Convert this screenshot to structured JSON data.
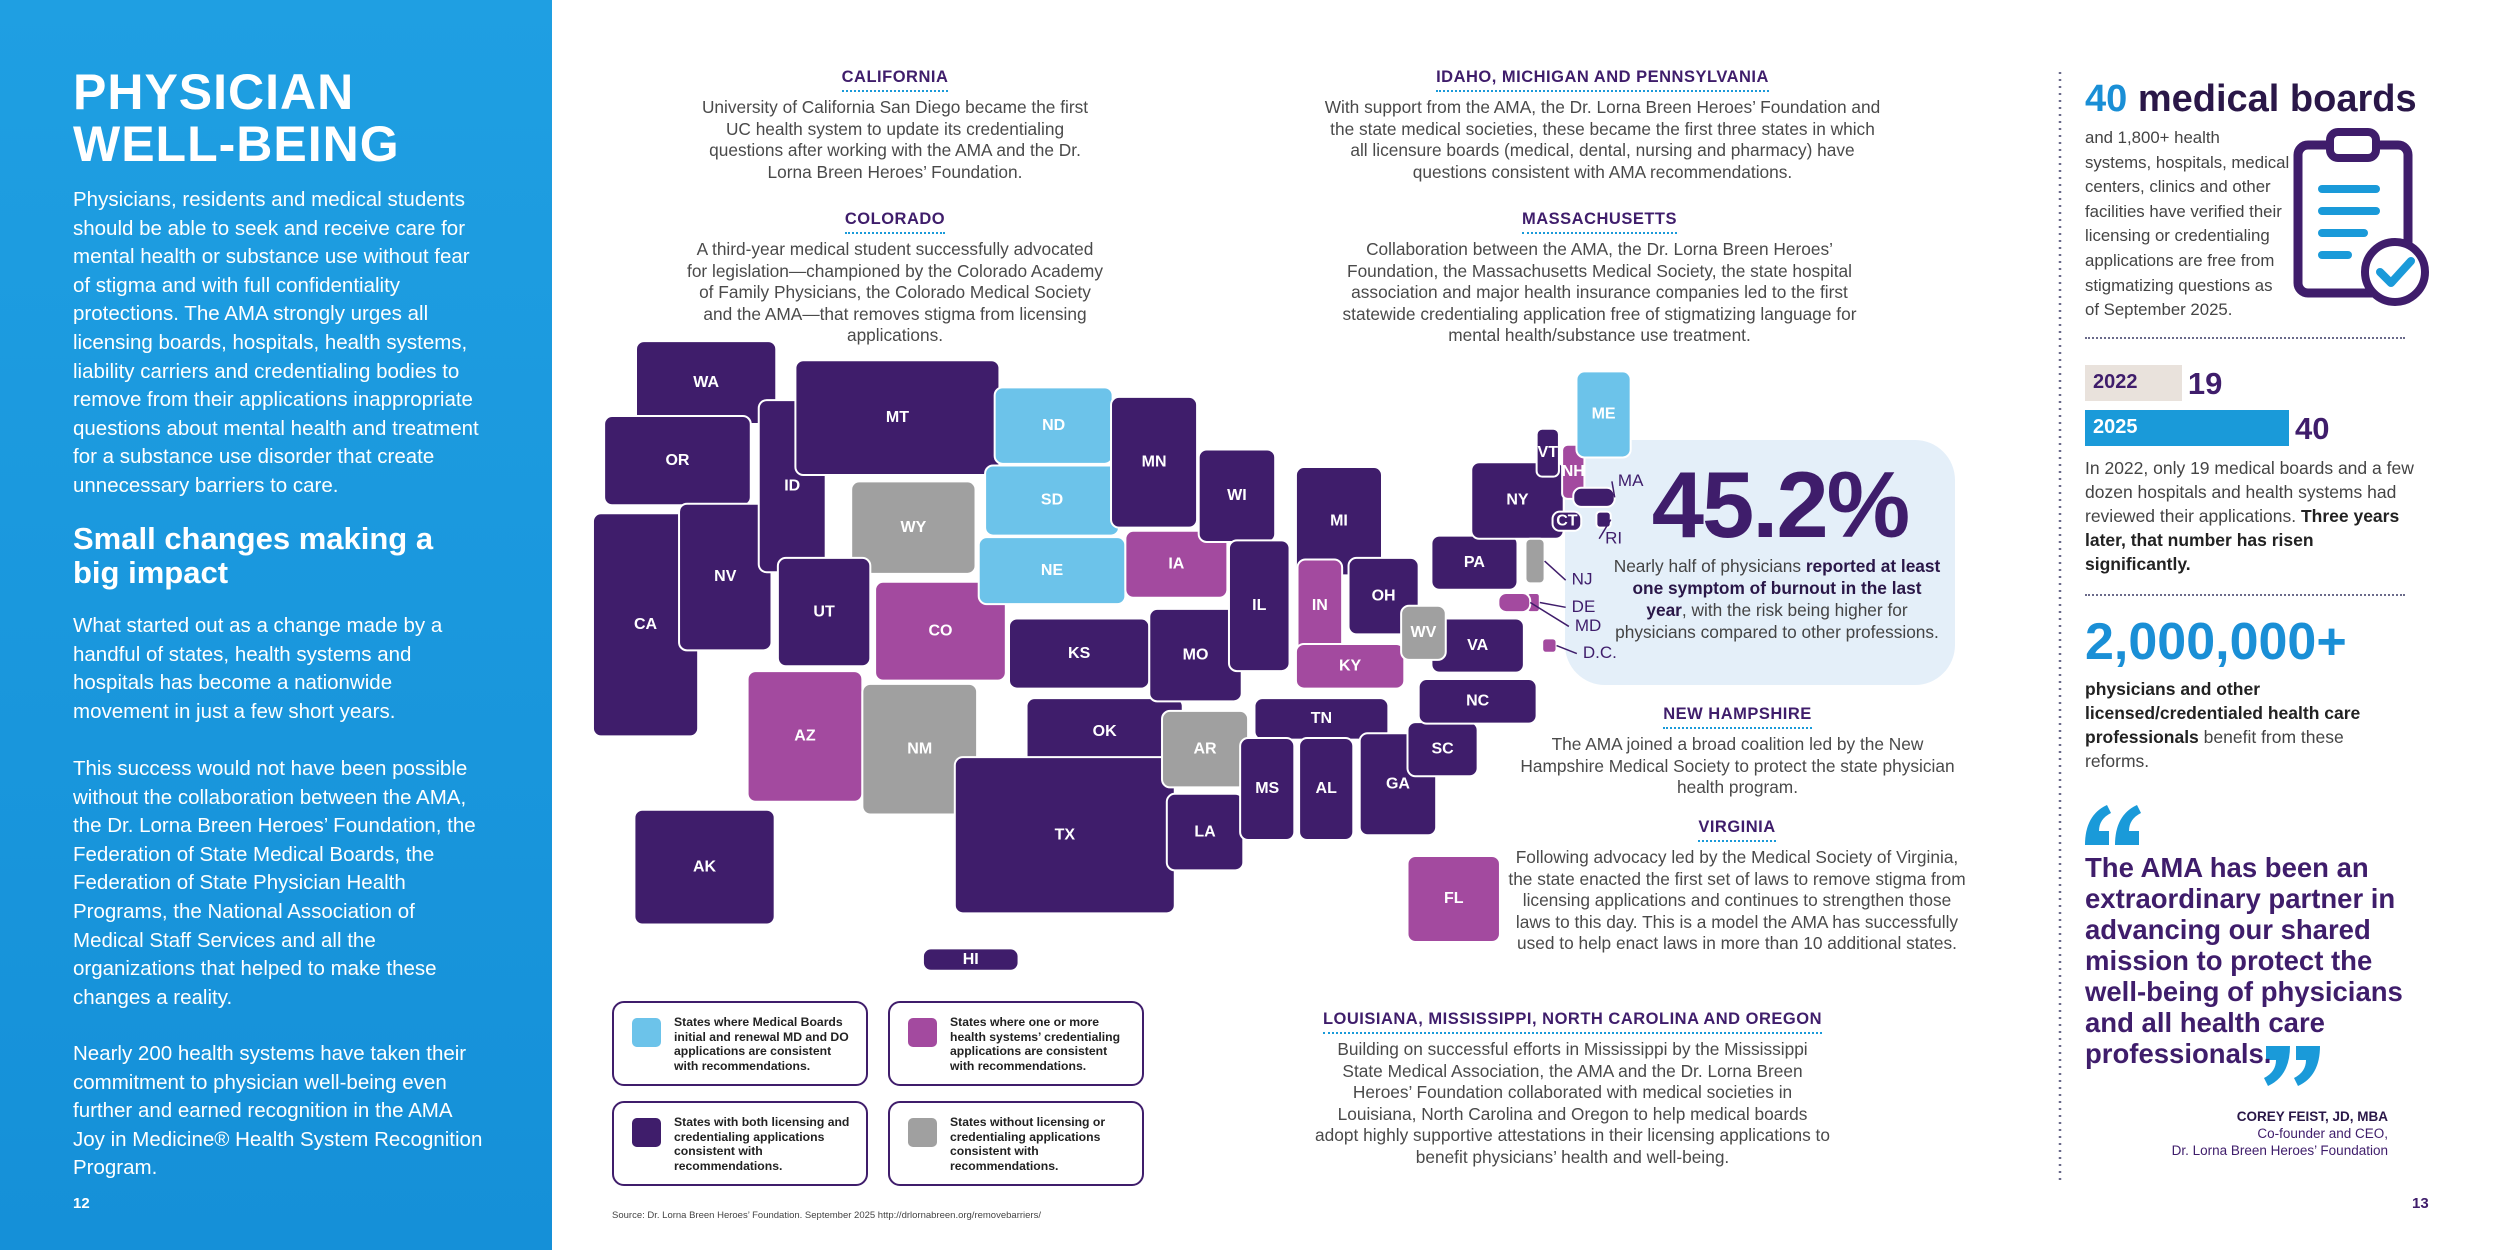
{
  "left_panel": {
    "title_lines": [
      "PHYSICIAN",
      "WELL-BEING"
    ],
    "intro": "Physicians, residents and medical students should be able to seek and receive care for mental health or substance use without fear of stigma and with full confidentiality protections. The AMA strongly urges all licensing boards, hospitals, health systems, liability carriers and credentialing bodies to remove from their applications inappropriate questions about mental health and treatment for a substance use disorder that create unnecessary barriers to care.",
    "heading": "Small changes making a big impact",
    "paragraphs": [
      "What started out as a change made by a handful of states, health systems and hospitals has become a nationwide movement in just a few short years.",
      "This success would not have been possible without the collaboration between the AMA, the Dr. Lorna Breen Heroes’ Foundation, the Federation of State Medical Boards, the Federation of State Physician Health Programs, the National Association of Medical Staff Services and all the organizations that helped to make these changes a reality.",
      "Nearly 200 health systems have taken their commitment to physician well-being even further and earned recognition in the AMA Joy in Medicine® Health System Recognition Program."
    ],
    "page_number": "12"
  },
  "callouts": [
    {
      "heading": "CALIFORNIA",
      "text": "University of California San Diego became the first UC health system to update its credentialing questions after working with the AMA and the Dr. Lorna Breen Heroes’ Foundation."
    },
    {
      "heading": "COLORADO",
      "text": "A third-year medical student successfully advocated for legislation—championed by the Colorado Academy of Family Physicians, the Colorado Medical Society and the AMA—that removes stigma from licensing applications."
    },
    {
      "heading": "IDAHO, MICHIGAN AND PENNSYLVANIA",
      "text": "With support from the AMA, the Dr. Lorna Breen Heroes’ Foundation and the state medical societies, these became the first three states in which all licensure boards (medical, dental, nursing and pharmacy) have questions consistent with AMA recommendations."
    },
    {
      "heading": "MASSACHUSETTS",
      "text": "Collaboration between the AMA, the Dr. Lorna Breen Heroes’ Foundation, the Massachusetts Medical Society, the state hospital association and major health insurance companies led to the first statewide credentialing application free of stigmatizing language for mental health/substance use treatment."
    },
    {
      "heading": "NEW HAMPSHIRE",
      "text": "The AMA joined a broad coalition led by the New Hampshire Medical Society to protect the state physician health program."
    },
    {
      "heading": "VIRGINIA",
      "text": "Following advocacy led by the Medical Society of Virginia, the state enacted the first set of laws to remove stigma from licensing applications and continues to strengthen those laws to this day. This is a model the AMA has successfully used to help enact laws in more than 10 additional states."
    },
    {
      "heading": "LOUISIANA, MISSISSIPPI, NORTH CAROLINA AND OREGON",
      "text": "Building on successful efforts in Mississippi by the Mississippi State Medical Association, the AMA and the Dr. Lorna Breen Heroes’ Foundation collaborated with medical societies in Louisiana, North Carolina and Oregon to help medical boards adopt highly supportive attestations in their licensing applications to benefit physicians’ health and well-being."
    }
  ],
  "map": {
    "states": [
      {
        "code": "WA",
        "color": "#3f1d6b"
      },
      {
        "code": "OR",
        "color": "#3f1d6b"
      },
      {
        "code": "CA",
        "color": "#3f1d6b"
      },
      {
        "code": "NV",
        "color": "#3f1d6b"
      },
      {
        "code": "ID",
        "color": "#3f1d6b"
      },
      {
        "code": "MT",
        "color": "#3f1d6b"
      },
      {
        "code": "WY",
        "color": "#a0a0a0"
      },
      {
        "code": "UT",
        "color": "#3f1d6b"
      },
      {
        "code": "CO",
        "color": "#a34a9f"
      },
      {
        "code": "AZ",
        "color": "#a34a9f"
      },
      {
        "code": "NM",
        "color": "#a0a0a0"
      },
      {
        "code": "ND",
        "color": "#6cc3ea"
      },
      {
        "code": "SD",
        "color": "#6cc3ea"
      },
      {
        "code": "NE",
        "color": "#6cc3ea"
      },
      {
        "code": "KS",
        "color": "#3f1d6b"
      },
      {
        "code": "OK",
        "color": "#3f1d6b"
      },
      {
        "code": "TX",
        "color": "#3f1d6b"
      },
      {
        "code": "MN",
        "color": "#3f1d6b"
      },
      {
        "code": "IA",
        "color": "#a34a9f"
      },
      {
        "code": "MO",
        "color": "#3f1d6b"
      },
      {
        "code": "AR",
        "color": "#a0a0a0"
      },
      {
        "code": "LA",
        "color": "#3f1d6b"
      },
      {
        "code": "WI",
        "color": "#3f1d6b"
      },
      {
        "code": "IL",
        "color": "#3f1d6b"
      },
      {
        "code": "MI",
        "color": "#3f1d6b"
      },
      {
        "code": "IN",
        "color": "#a34a9f"
      },
      {
        "code": "OH",
        "color": "#3f1d6b"
      },
      {
        "code": "KY",
        "color": "#a34a9f"
      },
      {
        "code": "TN",
        "color": "#3f1d6b"
      },
      {
        "code": "MS",
        "color": "#3f1d6b"
      },
      {
        "code": "AL",
        "color": "#3f1d6b"
      },
      {
        "code": "GA",
        "color": "#3f1d6b"
      },
      {
        "code": "FL",
        "color": "#a34a9f"
      },
      {
        "code": "SC",
        "color": "#3f1d6b"
      },
      {
        "code": "NC",
        "color": "#3f1d6b"
      },
      {
        "code": "VA",
        "color": "#3f1d6b"
      },
      {
        "code": "WV",
        "color": "#a0a0a0"
      },
      {
        "code": "PA",
        "color": "#3f1d6b"
      },
      {
        "code": "NY",
        "color": "#3f1d6b"
      },
      {
        "code": "VT",
        "color": "#3f1d6b"
      },
      {
        "code": "NH",
        "color": "#a34a9f"
      },
      {
        "code": "ME",
        "color": "#6cc3ea"
      },
      {
        "code": "MA",
        "color": "#3f1d6b"
      },
      {
        "code": "RI",
        "color": "#3f1d6b"
      },
      {
        "code": "CT",
        "color": "#3f1d6b"
      },
      {
        "code": "NJ",
        "color": "#a0a0a0"
      },
      {
        "code": "DE",
        "color": "#a34a9f"
      },
      {
        "code": "MD",
        "color": "#a34a9f"
      },
      {
        "code": "D.C.",
        "color": "#a34a9f"
      },
      {
        "code": "AK",
        "color": "#3f1d6b"
      },
      {
        "code": "HI",
        "color": "#3f1d6b"
      }
    ],
    "legend": [
      {
        "color": "#6cc3ea",
        "label": "States where Medical Boards initial and renewal MD and DO applications are consistent with recommendations."
      },
      {
        "color": "#a34a9f",
        "label": "States where one or more health systems’ credentialing applications are consistent with recommendations."
      },
      {
        "color": "#3f1d6b",
        "label": "States with both licensing and credentialing applications consistent with recommendations."
      },
      {
        "color": "#a0a0a0",
        "label": "States without licensing or credentialing applications consistent with recommendations."
      }
    ]
  },
  "burnout": {
    "value": "45.2%",
    "text_parts": [
      "Nearly half of physicians ",
      "reported at least one symptom of burnout in the last year",
      ", with the risk being higher for physicians compared to other professions."
    ]
  },
  "boards": {
    "number": "40",
    "title": "medical boards",
    "text": "and 1,800+ health systems, hospitals, medical centers, clinics and other facilities have verified their licensing or credentialing applications are free from stigmatizing questions as of September 2025.",
    "bars": [
      {
        "year": "2022",
        "value": 19,
        "color": "#e9e2dc"
      },
      {
        "year": "2025",
        "value": 40,
        "color": "#1a9ad9"
      }
    ],
    "note_parts": [
      "In 2022, only 19 medical boards and a few dozen hospitals and health systems had reviewed their applications. ",
      "Three years later, that number has risen significantly."
    ]
  },
  "reach": {
    "number": "2,000,000+",
    "text_parts": [
      "physicians and other licensed/credentialed health care professionals",
      " benefit from these reforms."
    ]
  },
  "quote": {
    "text": "The AMA has been an extraordinary partner in advancing our shared mission to protect the well-being of physicians and all health care professionals.",
    "name": "COREY FEIST, JD, MBA",
    "role": "Co-founder and CEO,",
    "org": "Dr. Lorna Breen Heroes’ Foundation"
  },
  "source": "Source: Dr. Lorna Breen Heroes’ Foundation. September 2025 http://drlornabreen.org/removebarriers/",
  "page_number_right": "13"
}
